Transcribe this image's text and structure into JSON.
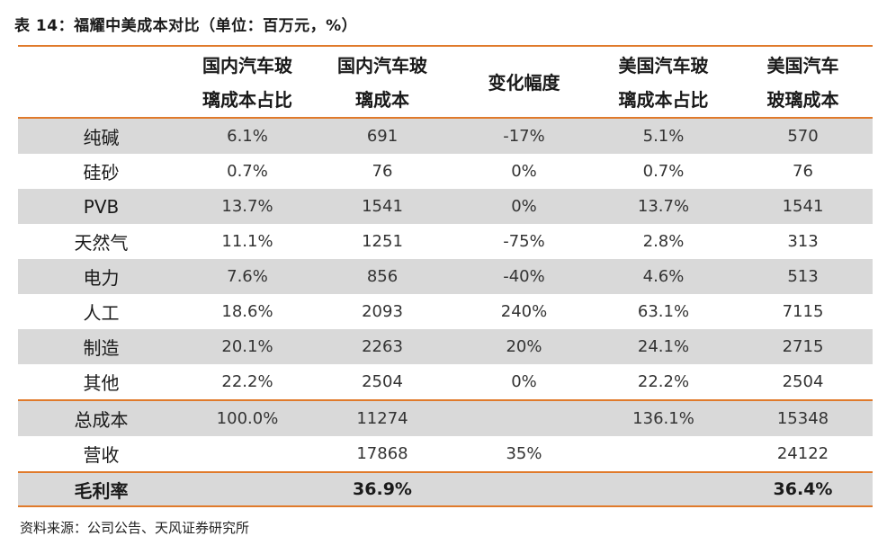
{
  "title": "表 14：福耀中美成本对比（单位：百万元，%）",
  "header": [
    {
      "line1": "",
      "line2": ""
    },
    {
      "line1": "国内汽车玻",
      "line2": "璃成本占比"
    },
    {
      "line1": "国内汽车玻",
      "line2": "璃成本"
    },
    {
      "line1": "变化幅度",
      "line2": ""
    },
    {
      "line1": "美国汽车玻",
      "line2": "璃成本占比"
    },
    {
      "line1": "美国汽车",
      "line2": "玻璃成本"
    }
  ],
  "rows": [
    [
      "纯碱",
      "6.1%",
      "691",
      "-17%",
      "5.1%",
      "570"
    ],
    [
      "硅砂",
      "0.7%",
      "76",
      "0%",
      "0.7%",
      "76"
    ],
    [
      "PVB",
      "13.7%",
      "1541",
      "0%",
      "13.7%",
      "1541"
    ],
    [
      "天然气",
      "11.1%",
      "1251",
      "-75%",
      "2.8%",
      "313"
    ],
    [
      "电力",
      "7.6%",
      "856",
      "-40%",
      "4.6%",
      "513"
    ],
    [
      "人工",
      "18.6%",
      "2093",
      "240%",
      "63.1%",
      "7115"
    ],
    [
      "制造",
      "20.1%",
      "2263",
      "20%",
      "24.1%",
      "2715"
    ],
    [
      "其他",
      "22.2%",
      "2504",
      "0%",
      "22.2%",
      "2504"
    ],
    [
      "总成本",
      "100.0%",
      "11274",
      "",
      "136.1%",
      "15348"
    ],
    [
      "营收",
      "",
      "17868",
      "35%",
      "",
      "24122"
    ],
    [
      "毛利率",
      "",
      "36.9%",
      "",
      "",
      "36.4%"
    ]
  ],
  "source": "资料来源：公司公告、天风证券研究所",
  "colors": {
    "accent": "#e07a2b",
    "shade": "#d9d9d9"
  }
}
